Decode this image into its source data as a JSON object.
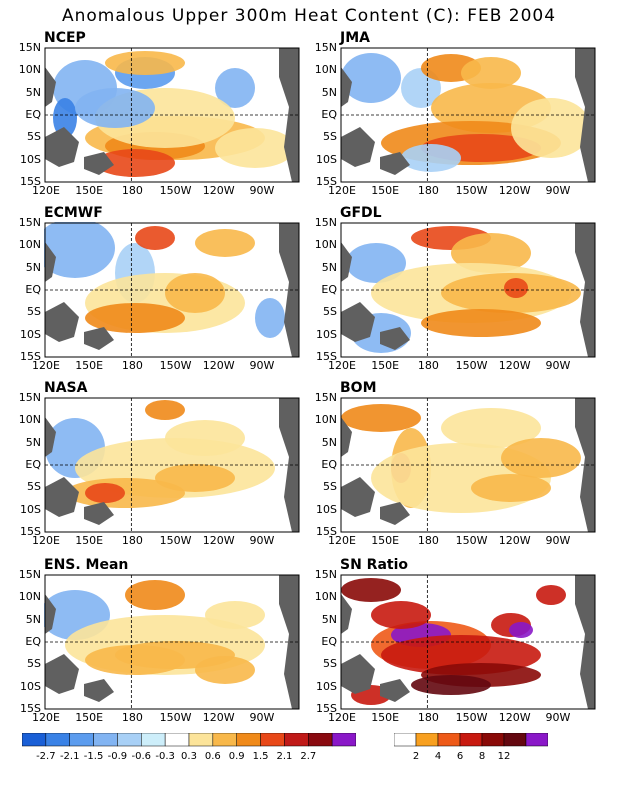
{
  "title": "Anomalous Upper 300m Heat Content (C): FEB 2004",
  "lat_ticks": [
    "15N",
    "10N",
    "5N",
    "EQ",
    "5S",
    "10S",
    "15S"
  ],
  "lon_ticks": [
    "120E",
    "150E",
    "180",
    "150W",
    "120W",
    "90W"
  ],
  "panels": [
    {
      "label": "NCEP",
      "col": 0,
      "row": 0,
      "kind": "anom"
    },
    {
      "label": "JMA",
      "col": 1,
      "row": 0,
      "kind": "anom"
    },
    {
      "label": "ECMWF",
      "col": 0,
      "row": 1,
      "kind": "anom"
    },
    {
      "label": "GFDL",
      "col": 1,
      "row": 1,
      "kind": "anom"
    },
    {
      "label": "NASA",
      "col": 0,
      "row": 2,
      "kind": "anom"
    },
    {
      "label": "BOM",
      "col": 1,
      "row": 2,
      "kind": "anom"
    },
    {
      "label": "ENS. Mean",
      "col": 0,
      "row": 3,
      "kind": "anom"
    },
    {
      "label": "SN Ratio",
      "col": 1,
      "row": 3,
      "kind": "snr"
    }
  ],
  "anom_colorbar": {
    "colors": [
      "#1a5fd6",
      "#3a82e6",
      "#5c9cee",
      "#82b4f2",
      "#a8d0f6",
      "#cdeefa",
      "#ffffff",
      "#fce49a",
      "#f8b84a",
      "#f08a1a",
      "#e84818",
      "#c01a18",
      "#8a0a10",
      "#8a18c8"
    ],
    "labels": [
      "-2.7",
      "-2.1",
      "-1.5",
      "-0.9",
      "-0.6",
      "-0.3",
      "0.3",
      "0.6",
      "0.9",
      "1.5",
      "2.1",
      "2.7"
    ]
  },
  "snr_colorbar": {
    "colors": [
      "#ffffff",
      "#f8a020",
      "#ee5a18",
      "#c81a10",
      "#8a0a08",
      "#640810",
      "#8a18c8"
    ],
    "labels": [
      "2",
      "4",
      "6",
      "8",
      "12"
    ]
  }
}
